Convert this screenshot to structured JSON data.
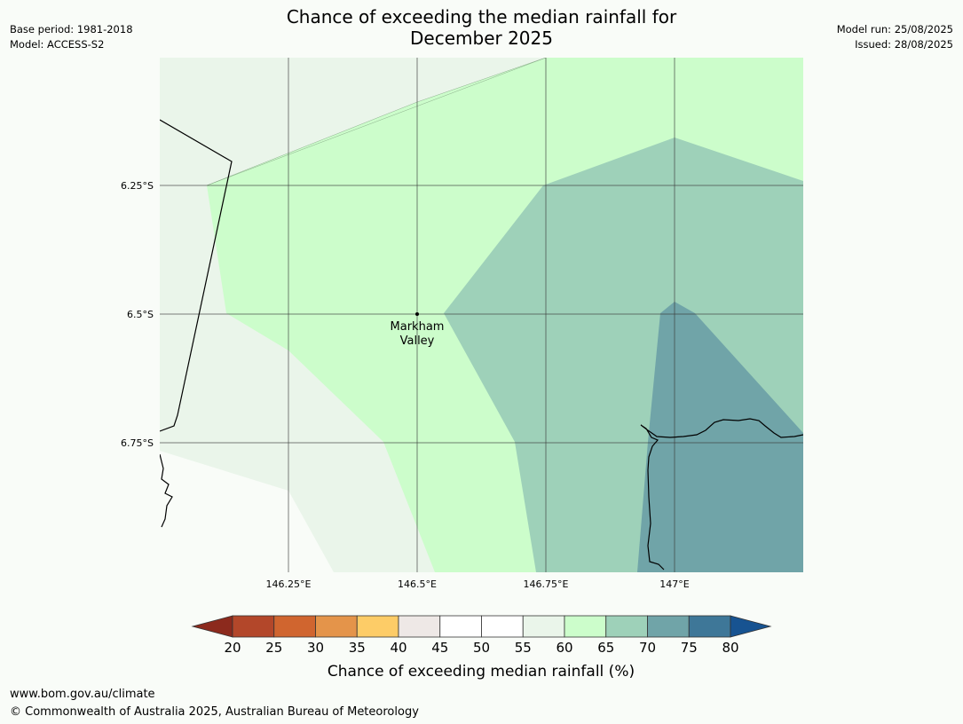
{
  "header": {
    "title_line1": "Chance of exceeding the median rainfall for",
    "title_line2": "December 2025",
    "base_period": "Base period: 1981-2018",
    "model": "Model: ACCESS-S2",
    "model_run": "Model run: 25/08/2025",
    "issued": "Issued: 28/08/2025"
  },
  "map": {
    "lat_labels": [
      "6.25°S",
      "6.5°S",
      "6.75°S"
    ],
    "lon_labels": [
      "146.25°E",
      "146.5°E",
      "146.75°E",
      "147°E"
    ],
    "place": {
      "line1": "Markham",
      "line2": "Valley"
    },
    "colors": {
      "c55_60": "#eaf5ea",
      "c60_65": "#ccfdcb",
      "c65_70": "#9ed1b9",
      "c70_75": "#70a4a8",
      "below": "#f9fcf8"
    }
  },
  "colorbar": {
    "ticks": [
      "20",
      "25",
      "30",
      "35",
      "40",
      "45",
      "50",
      "55",
      "60",
      "65",
      "70",
      "75",
      "80"
    ],
    "colors": [
      "#8c2a1d",
      "#b3472a",
      "#d0652f",
      "#e4944a",
      "#fdcc67",
      "#eee8e6",
      "#ffffff",
      "#ffffff",
      "#eaf5ea",
      "#ccfdcb",
      "#9ed1b9",
      "#70a4a8",
      "#3e7798",
      "#175391"
    ],
    "label": "Chance of exceeding median rainfall (%)"
  },
  "footer": {
    "url": "www.bom.gov.au/climate",
    "copyright": "© Commonwealth of Australia 2025, Australian Bureau of Meteorology"
  }
}
